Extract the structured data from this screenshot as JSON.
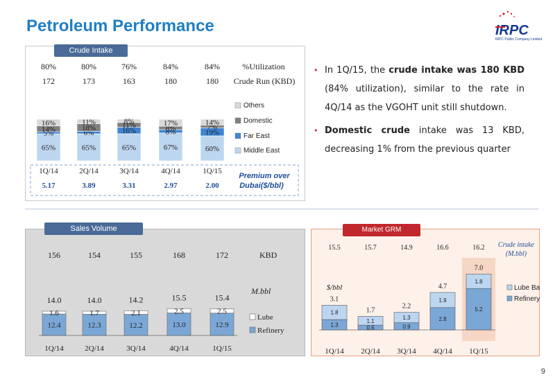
{
  "slide_title": "Petroleum Performance",
  "page_number": "9",
  "logo": {
    "name": "IRPC",
    "subtitle": "IRPC Public Company Limited",
    "icon": "irpc-logo-icon",
    "colors": {
      "blue": "#123a8f",
      "red": "#d2232a"
    }
  },
  "bullets": [
    {
      "parts": [
        {
          "text": "In 1Q/15, the ",
          "bold": false
        },
        {
          "text": "crude intake was  180 KBD",
          "bold": true
        },
        {
          "text": " (84% utilization), similar to the rate in 4Q/14 as the VGOHT unit still shutdown.",
          "bold": false
        }
      ]
    },
    {
      "parts": [
        {
          "text": "Domestic crude",
          "bold": true
        },
        {
          "text": " intake was 13 KBD, decreasing 1% from the previous quarter",
          "bold": false
        }
      ]
    }
  ],
  "chart_data": [
    {
      "id": "crude-intake",
      "type": "bar",
      "stacked": true,
      "title": "Crude Intake",
      "categories": [
        "1Q/14",
        "2Q/14",
        "3Q/14",
        "4Q/14",
        "1Q/15"
      ],
      "series": [
        {
          "name": "Middle East",
          "values": [
            65,
            65,
            65,
            67,
            60
          ],
          "labels": [
            "65%",
            "65%",
            "65%",
            "67%",
            "60%"
          ],
          "color": "#bdd6f0"
        },
        {
          "name": "Far East",
          "values": [
            5,
            6,
            16,
            8,
            19
          ],
          "labels": [
            "5%",
            "6%",
            "16%",
            "8%",
            "19%"
          ],
          "color": "#3f86d4"
        },
        {
          "name": "Domestic",
          "values": [
            14,
            18,
            11,
            8,
            7
          ],
          "labels": [
            "14%",
            "18%",
            "11%",
            "8%",
            "7%"
          ],
          "color": "#808080"
        },
        {
          "name": "Others",
          "values": [
            16,
            11,
            8,
            17,
            14
          ],
          "labels": [
            "16%",
            "11%",
            "8%",
            "17%",
            "14%"
          ],
          "color": "#d9d9d9"
        }
      ],
      "legend_order": [
        "Others",
        "Domestic",
        "Far East",
        "Middle East"
      ],
      "legend_position": "right",
      "header_rows": [
        {
          "label": "%Utilization",
          "values": [
            "80%",
            "80%",
            "76%",
            "84%",
            "84%"
          ]
        },
        {
          "label": "Crude Run (KBD)",
          "values": [
            "172",
            "173",
            "163",
            "180",
            "180"
          ]
        }
      ],
      "premium": {
        "label": "Premium over Dubai($/bbl)",
        "values": [
          "5.17",
          "3.89",
          "3.31",
          "2.97",
          "2.00"
        ]
      }
    },
    {
      "id": "sales-volume",
      "type": "bar",
      "stacked": true,
      "title": "Sales Volume",
      "categories": [
        "1Q/14",
        "2Q/14",
        "3Q/14",
        "4Q/14",
        "1Q/15"
      ],
      "series": [
        {
          "name": "Refinery",
          "values": [
            12.4,
            12.3,
            12.2,
            13.0,
            12.9
          ],
          "labels": [
            "12.4",
            "12.3",
            "12.2",
            "13.0",
            "12.9"
          ],
          "color": "#7ba7d7"
        },
        {
          "name": "Lube",
          "values": [
            1.6,
            1.7,
            2.1,
            2.5,
            2.5
          ],
          "labels": [
            "1.6",
            "1.7",
            "2.1",
            "2.5",
            "2.5"
          ],
          "color": "#ffffff"
        }
      ],
      "totals": [
        "14.0",
        "14.0",
        "14.2",
        "15.5",
        "15.4"
      ],
      "kbd": {
        "label": "KBD",
        "values": [
          "156",
          "154",
          "155",
          "168",
          "172"
        ]
      },
      "unit_label": "M.bbl",
      "legend_order": [
        "Lube",
        "Refinery"
      ],
      "legend_position": "right",
      "background": "#d9d9d9"
    },
    {
      "id": "market-grm",
      "type": "bar",
      "stacked": true,
      "title": "Market  GRM",
      "categories": [
        "1Q/14",
        "2Q/14",
        "3Q/14",
        "4Q/14",
        "1Q/15"
      ],
      "series": [
        {
          "name": "Refinery",
          "values": [
            1.3,
            0.6,
            0.9,
            2.8,
            5.2
          ],
          "labels": [
            "1.3",
            "0.6",
            "0.9",
            "2.8",
            "5.2"
          ],
          "color": "#7ba7d7"
        },
        {
          "name": "Lube Base",
          "values": [
            1.8,
            1.1,
            1.3,
            1.9,
            1.8
          ],
          "labels": [
            "1.8",
            "1.1",
            "1.3",
            "1.9",
            "1.8"
          ],
          "color": "#bdd6f0"
        }
      ],
      "totals": [
        "3.1",
        "1.7",
        "2.2",
        "4.7",
        "7.0"
      ],
      "crude_intake": {
        "label": "Crude intake (M.bbl)",
        "values": [
          "15.5",
          "15.7",
          "14.9",
          "16.6",
          "16.2"
        ]
      },
      "unit_label": "$/bbl",
      "legend_order": [
        "Lube Base",
        "Refinery"
      ],
      "legend_position": "right",
      "highlight_category": "1Q/15",
      "highlight_color": "#f6d6c4",
      "background": "#fdf1ea"
    }
  ]
}
